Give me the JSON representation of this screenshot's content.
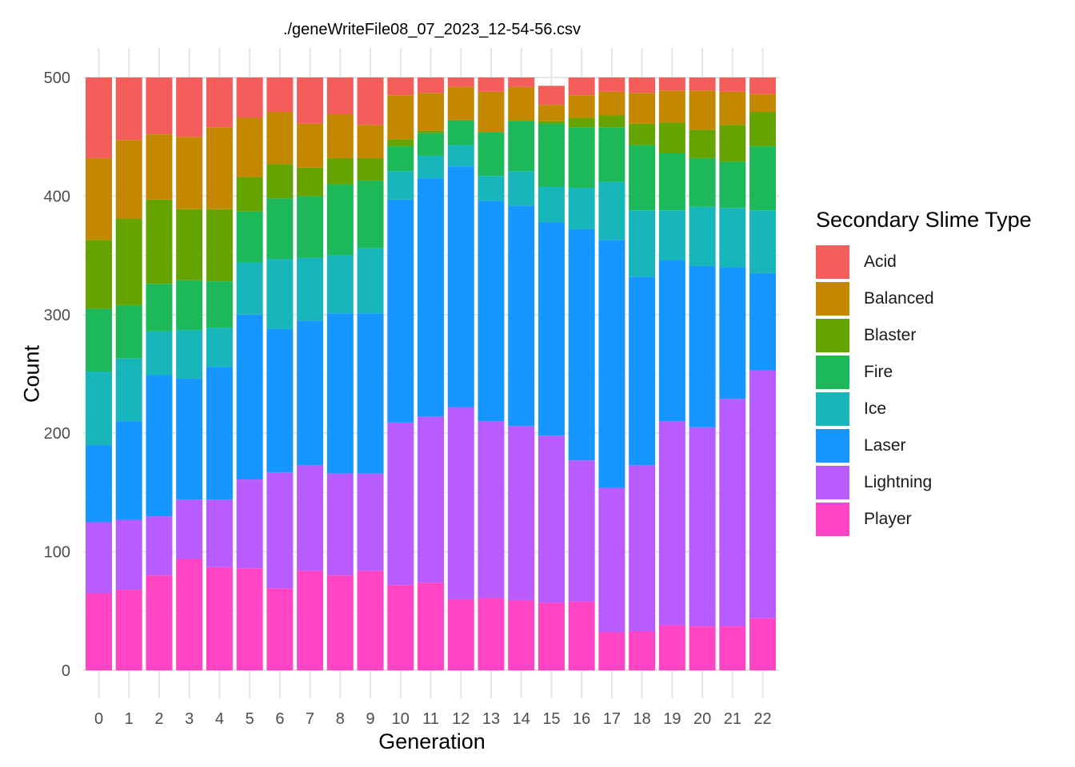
{
  "chart_data": {
    "type": "bar",
    "stacked": true,
    "title": "./geneWriteFile08_07_2023_12-54-56.csv",
    "xlabel": "Generation",
    "ylabel": "Count",
    "ylim": [
      0,
      500
    ],
    "yticks": [
      0,
      100,
      200,
      300,
      400,
      500
    ],
    "grid": true,
    "legend_position": "right",
    "legend_title": "Secondary Slime Type",
    "categories": [
      "0",
      "1",
      "2",
      "3",
      "4",
      "5",
      "6",
      "7",
      "8",
      "9",
      "10",
      "11",
      "12",
      "13",
      "14",
      "15",
      "16",
      "17",
      "18",
      "19",
      "20",
      "21",
      "22"
    ],
    "series": [
      {
        "name": "Player",
        "color": "#FF45C3",
        "values": [
          65,
          68,
          80,
          94,
          87,
          86,
          69,
          84,
          80,
          84,
          72,
          74,
          60,
          61,
          59,
          57,
          58,
          32,
          33,
          38,
          37,
          37,
          44
        ]
      },
      {
        "name": "Lightning",
        "color": "#B85CFF",
        "values": [
          60,
          59,
          50,
          50,
          57,
          75,
          98,
          89,
          86,
          82,
          137,
          140,
          162,
          149,
          147,
          141,
          119,
          122,
          140,
          172,
          168,
          192,
          209
        ]
      },
      {
        "name": "Laser",
        "color": "#1597FF",
        "values": [
          65,
          83,
          119,
          102,
          112,
          139,
          121,
          122,
          135,
          135,
          188,
          201,
          203,
          186,
          186,
          180,
          195,
          209,
          159,
          136,
          136,
          111,
          82
        ]
      },
      {
        "name": "Ice",
        "color": "#17B6BA",
        "values": [
          62,
          53,
          37,
          41,
          33,
          44,
          59,
          53,
          49,
          55,
          24,
          19,
          18,
          21,
          29,
          30,
          35,
          49,
          56,
          42,
          50,
          50,
          53
        ]
      },
      {
        "name": "Fire",
        "color": "#1DB85A",
        "values": [
          53,
          45,
          40,
          42,
          39,
          43,
          51,
          52,
          60,
          57,
          21,
          19,
          21,
          37,
          42,
          53,
          51,
          46,
          55,
          48,
          41,
          39,
          54
        ]
      },
      {
        "name": "Blaster",
        "color": "#65A300",
        "values": [
          58,
          73,
          71,
          60,
          61,
          29,
          29,
          24,
          22,
          19,
          6,
          2,
          0,
          0,
          1,
          2,
          8,
          10,
          18,
          26,
          24,
          31,
          29
        ]
      },
      {
        "name": "Balanced",
        "color": "#C38800",
        "values": [
          69,
          66,
          55,
          61,
          69,
          50,
          44,
          37,
          37,
          28,
          37,
          32,
          28,
          34,
          28,
          14,
          19,
          20,
          26,
          27,
          33,
          28,
          15
        ]
      },
      {
        "name": "Acid",
        "color": "#F35E5A",
        "values": [
          68,
          53,
          48,
          50,
          42,
          34,
          29,
          39,
          31,
          40,
          15,
          13,
          8,
          12,
          8,
          16,
          15,
          12,
          13,
          11,
          11,
          12,
          14
        ]
      }
    ]
  }
}
